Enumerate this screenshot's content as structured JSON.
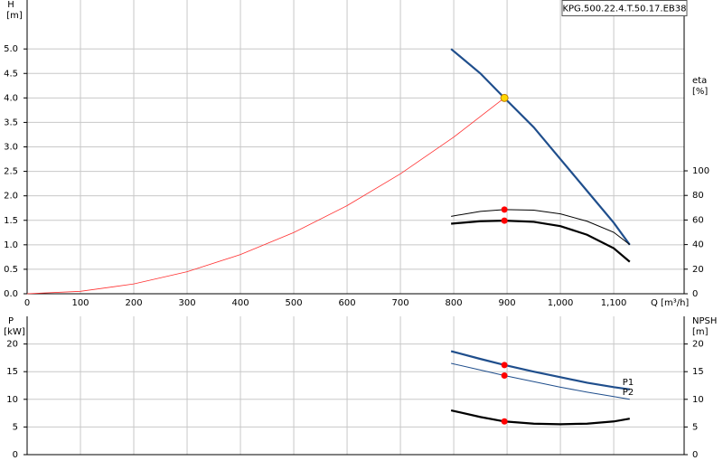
{
  "chart_data": [
    {
      "type": "line",
      "title": "KPG.500.22.4.T.50.17.EB38",
      "ylabel": "H",
      "yunit": "[m]",
      "y2label": "eta",
      "y2unit": "[%]",
      "xlabel": "Q [m³/h]",
      "xlim": [
        0,
        1232
      ],
      "xticks": [
        0,
        100,
        200,
        300,
        400,
        500,
        600,
        700,
        800,
        900,
        {
          "value": 1000,
          "label": "1,000"
        },
        {
          "value": 1100,
          "label": "1,100"
        }
      ],
      "ylim": [
        0,
        6
      ],
      "yticks": [
        {
          "value": 0,
          "label": "0.0"
        },
        0.5,
        {
          "value": 1,
          "label": "1.0"
        },
        1.5,
        {
          "value": 2,
          "label": "2.0"
        },
        2.5,
        {
          "value": 3,
          "label": "3.0"
        },
        3.5,
        {
          "value": 4,
          "label": "4.0"
        },
        4.5,
        {
          "value": 5,
          "label": "5.0"
        }
      ],
      "y2lim": [
        0,
        239
      ],
      "y2ticks": [
        0,
        20,
        40,
        60,
        80,
        100
      ],
      "grid": true,
      "operating_x": 895,
      "operating_point": {
        "x": 895,
        "y": 4.0,
        "color": "#ffd700"
      },
      "series": [
        {
          "color": "#ff3030",
          "linewidth": 0.8,
          "marker": false,
          "x": [
            0,
            100,
            200,
            300,
            400,
            500,
            600,
            700,
            800,
            895
          ],
          "values": [
            0,
            0.05,
            0.2,
            0.45,
            0.8,
            1.25,
            1.8,
            2.45,
            3.2,
            4.0
          ]
        },
        {
          "color": "#1f4e8c",
          "linewidth": 2.2,
          "marker": false,
          "x": [
            795,
            850,
            895,
            950,
            1000,
            1050,
            1100,
            1130
          ],
          "values": [
            5.0,
            4.5,
            4.0,
            3.4,
            2.75,
            2.1,
            1.45,
            1.0
          ]
        },
        {
          "color": "#000000",
          "linewidth": 1,
          "marker": true,
          "axis": "y2",
          "x": [
            795,
            850,
            895,
            950,
            1000,
            1050,
            1100,
            1130
          ],
          "values": [
            63,
            67,
            68.5,
            68,
            65,
            59,
            50,
            40
          ]
        },
        {
          "color": "#000000",
          "linewidth": 2.2,
          "marker": true,
          "axis": "y2",
          "x": [
            795,
            850,
            895,
            950,
            1000,
            1050,
            1100,
            1130
          ],
          "values": [
            57,
            59,
            59.5,
            58.5,
            55,
            48,
            37,
            26
          ]
        }
      ]
    },
    {
      "type": "line",
      "ylabel": "P",
      "yunit": "[kW]",
      "y2label": "NPSH",
      "y2unit": "[m]",
      "xlim": [
        0,
        1232
      ],
      "xticks": [
        0,
        100,
        200,
        300,
        400,
        500,
        600,
        700,
        800,
        900,
        1000,
        1100
      ],
      "ylim": [
        0,
        25
      ],
      "yticks": [
        0,
        5,
        10,
        15,
        20
      ],
      "y2lim": [
        0,
        25
      ],
      "y2ticks": [
        0,
        5,
        10,
        15,
        20
      ],
      "grid": true,
      "operating_x": 895,
      "series": [
        {
          "name": "P1",
          "color": "#1f4e8c",
          "linewidth": 2.2,
          "marker": true,
          "x": [
            795,
            850,
            895,
            950,
            1000,
            1050,
            1100,
            1130
          ],
          "values": [
            18.7,
            17.3,
            16.2,
            15.0,
            14.0,
            13.0,
            12.2,
            11.8
          ]
        },
        {
          "name": "P2",
          "color": "#1f4e8c",
          "linewidth": 1,
          "marker": true,
          "x": [
            795,
            850,
            895,
            950,
            1000,
            1050,
            1100,
            1130
          ],
          "values": [
            16.5,
            15.3,
            14.3,
            13.2,
            12.2,
            11.3,
            10.5,
            10.0
          ]
        },
        {
          "color": "#000000",
          "linewidth": 2.2,
          "marker": true,
          "axis": "y2",
          "x": [
            795,
            850,
            895,
            950,
            1000,
            1050,
            1100,
            1130
          ],
          "values": [
            8.0,
            6.8,
            6.0,
            5.6,
            5.5,
            5.6,
            6.0,
            6.5
          ]
        }
      ]
    }
  ]
}
